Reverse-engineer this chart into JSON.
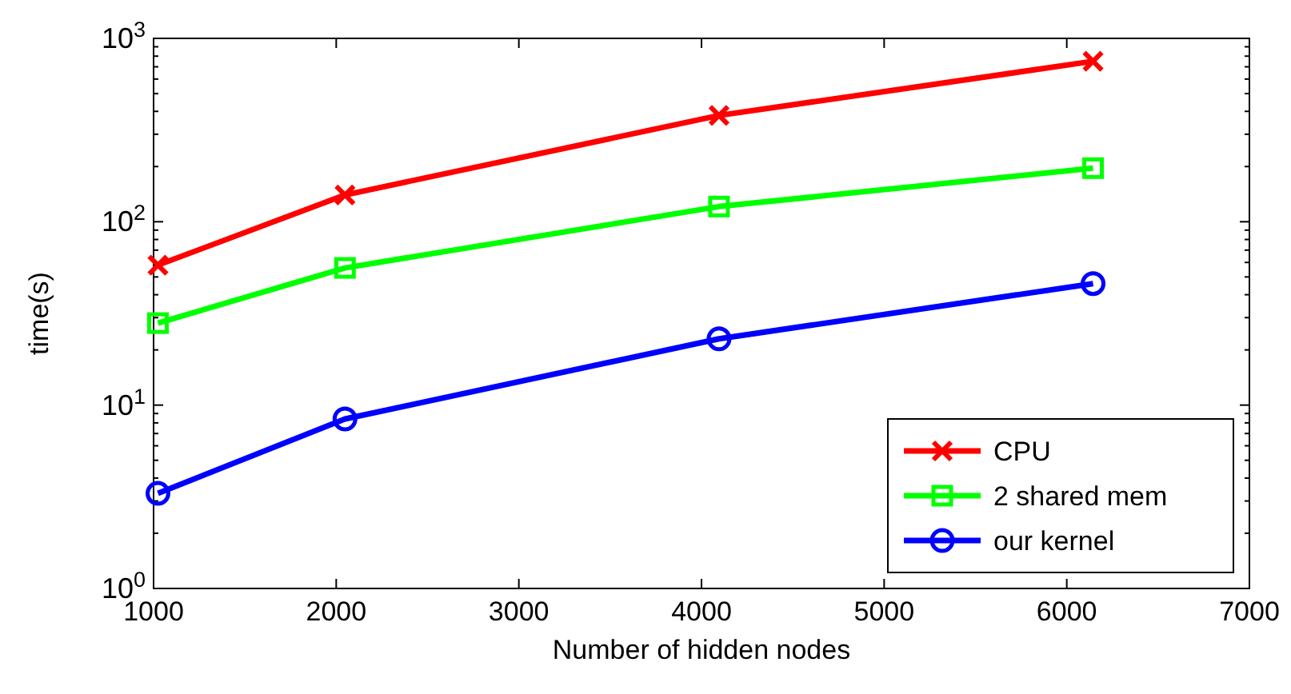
{
  "chart_data": {
    "type": "line",
    "xlabel": "Number of hidden nodes",
    "ylabel": "time(s)",
    "log": "y",
    "x": [
      1024,
      2048,
      4096,
      6144
    ],
    "xlim": [
      1000,
      7000
    ],
    "xticks": [
      1000,
      2000,
      3000,
      4000,
      5000,
      6000,
      7000
    ],
    "ylim": [
      1,
      1000
    ],
    "yticks": [
      {
        "value": 1,
        "label": "10$^{0}$"
      },
      {
        "value": 10,
        "label": "10$^{1}$"
      },
      {
        "value": 100,
        "label": "10$^{2}$"
      },
      {
        "value": 1000,
        "label": "10$^{3}$"
      }
    ],
    "grid": false,
    "legend": "bottom right",
    "line_style": "solid",
    "series": [
      {
        "name": "CPU",
        "color": "#ff0000",
        "marker": "cross",
        "values": [
          58,
          140,
          380,
          750
        ]
      },
      {
        "name": "2 shared mem",
        "color": "#00ff00",
        "marker": "square",
        "values": [
          28,
          56,
          121,
          196
        ]
      },
      {
        "name": "our kernel",
        "color": "#0000ff",
        "marker": "circle",
        "values": [
          3.3,
          8.4,
          23,
          46
        ]
      }
    ]
  }
}
